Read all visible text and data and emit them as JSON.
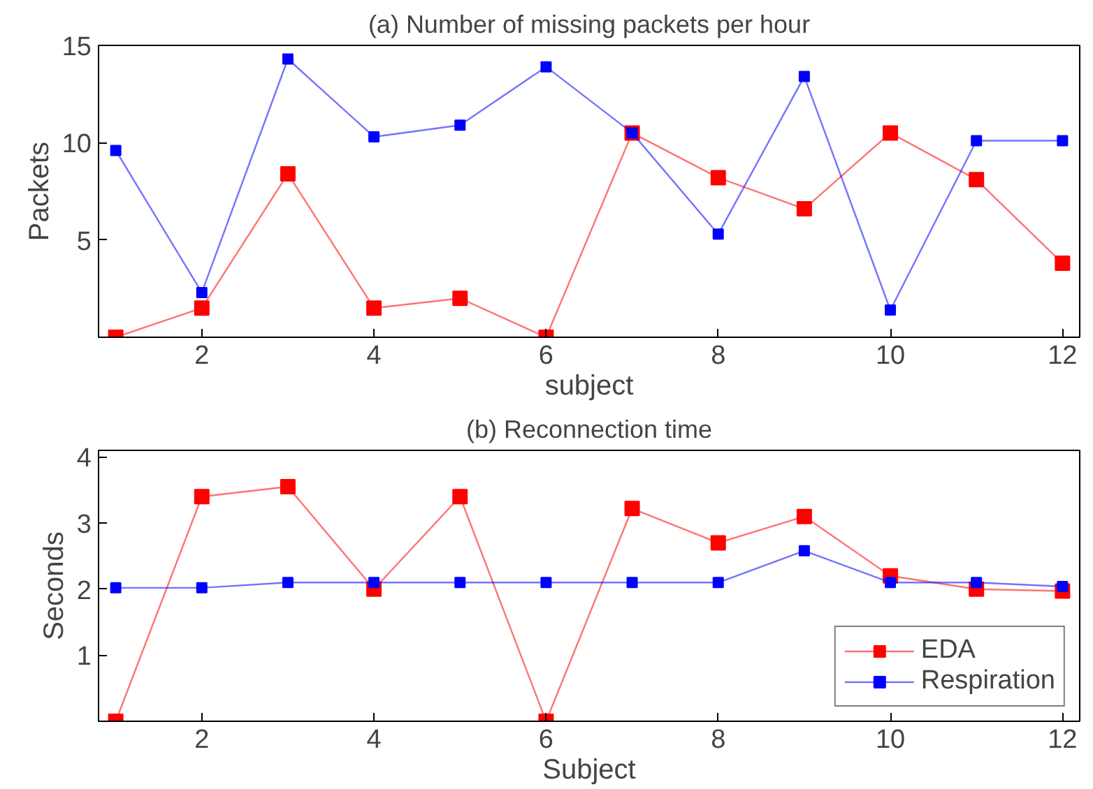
{
  "chart_data": [
    {
      "type": "line",
      "title": "(a) Number of missing packets per hour",
      "xlabel": "subject",
      "ylabel": "Packets",
      "x": [
        1,
        2,
        3,
        4,
        5,
        6,
        7,
        8,
        9,
        10,
        11,
        12
      ],
      "xlim": [
        0.8,
        12.2
      ],
      "xticks": [
        2,
        4,
        6,
        8,
        10,
        12
      ],
      "ylim": [
        0,
        15
      ],
      "yticks": [
        5,
        10,
        15
      ],
      "grid": false,
      "legend": false,
      "marker": "square",
      "line_style": "solid",
      "series": [
        {
          "color": "#ff0000",
          "values": [
            0,
            1.5,
            8.4,
            1.5,
            2.0,
            0,
            10.5,
            8.2,
            6.6,
            10.5,
            8.1,
            3.8
          ]
        },
        {
          "color": "#0000ff",
          "values": [
            9.6,
            2.3,
            14.3,
            10.3,
            10.9,
            13.9,
            10.5,
            5.3,
            13.4,
            1.4,
            10.1,
            10.1
          ]
        }
      ]
    },
    {
      "type": "line",
      "title": "(b) Reconnection time",
      "xlabel": "Subject",
      "ylabel": "Seconds",
      "x": [
        1,
        2,
        3,
        4,
        5,
        6,
        7,
        8,
        9,
        10,
        11,
        12
      ],
      "xlim": [
        0.8,
        12.2
      ],
      "xticks": [
        2,
        4,
        6,
        8,
        10,
        12
      ],
      "ylim": [
        0,
        4.1
      ],
      "yticks": [
        1,
        2,
        3,
        4
      ],
      "grid": false,
      "legend": "bottom right",
      "marker": "square",
      "line_style": "solid",
      "series": [
        {
          "name": "EDA",
          "color": "#ff0000",
          "values": [
            0,
            3.4,
            3.55,
            2.0,
            3.4,
            0,
            3.22,
            2.7,
            3.1,
            2.2,
            2.0,
            1.97
          ]
        },
        {
          "name": "Respiration",
          "color": "#0000ff",
          "values": [
            2.02,
            2.02,
            2.1,
            2.1,
            2.1,
            2.1,
            2.1,
            2.1,
            2.58,
            2.1,
            2.1,
            2.04
          ]
        }
      ]
    }
  ]
}
